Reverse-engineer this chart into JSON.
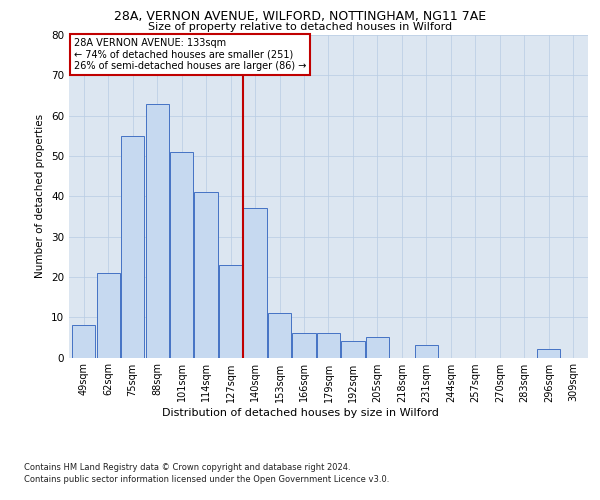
{
  "title1": "28A, VERNON AVENUE, WILFORD, NOTTINGHAM, NG11 7AE",
  "title2": "Size of property relative to detached houses in Wilford",
  "xlabel": "Distribution of detached houses by size in Wilford",
  "ylabel": "Number of detached properties",
  "bar_labels": [
    "49sqm",
    "62sqm",
    "75sqm",
    "88sqm",
    "101sqm",
    "114sqm",
    "127sqm",
    "140sqm",
    "153sqm",
    "166sqm",
    "179sqm",
    "192sqm",
    "205sqm",
    "218sqm",
    "231sqm",
    "244sqm",
    "257sqm",
    "270sqm",
    "283sqm",
    "296sqm",
    "309sqm"
  ],
  "bar_heights": [
    8,
    21,
    55,
    63,
    51,
    41,
    23,
    37,
    11,
    6,
    6,
    4,
    5,
    0,
    3,
    0,
    0,
    0,
    0,
    2,
    0
  ],
  "bar_color": "#c6d9f0",
  "bar_edge_color": "#4472c4",
  "vline_x": 6.5,
  "vline_color": "#c00000",
  "annotation_text": "28A VERNON AVENUE: 133sqm\n← 74% of detached houses are smaller (251)\n26% of semi-detached houses are larger (86) →",
  "annotation_box_color": "#ffffff",
  "annotation_box_edge": "#c00000",
  "ylim": [
    0,
    80
  ],
  "yticks": [
    0,
    10,
    20,
    30,
    40,
    50,
    60,
    70,
    80
  ],
  "grid_color": "#b8cce4",
  "background_color": "#dce6f1",
  "footer1": "Contains HM Land Registry data © Crown copyright and database right 2024.",
  "footer2": "Contains public sector information licensed under the Open Government Licence v3.0."
}
